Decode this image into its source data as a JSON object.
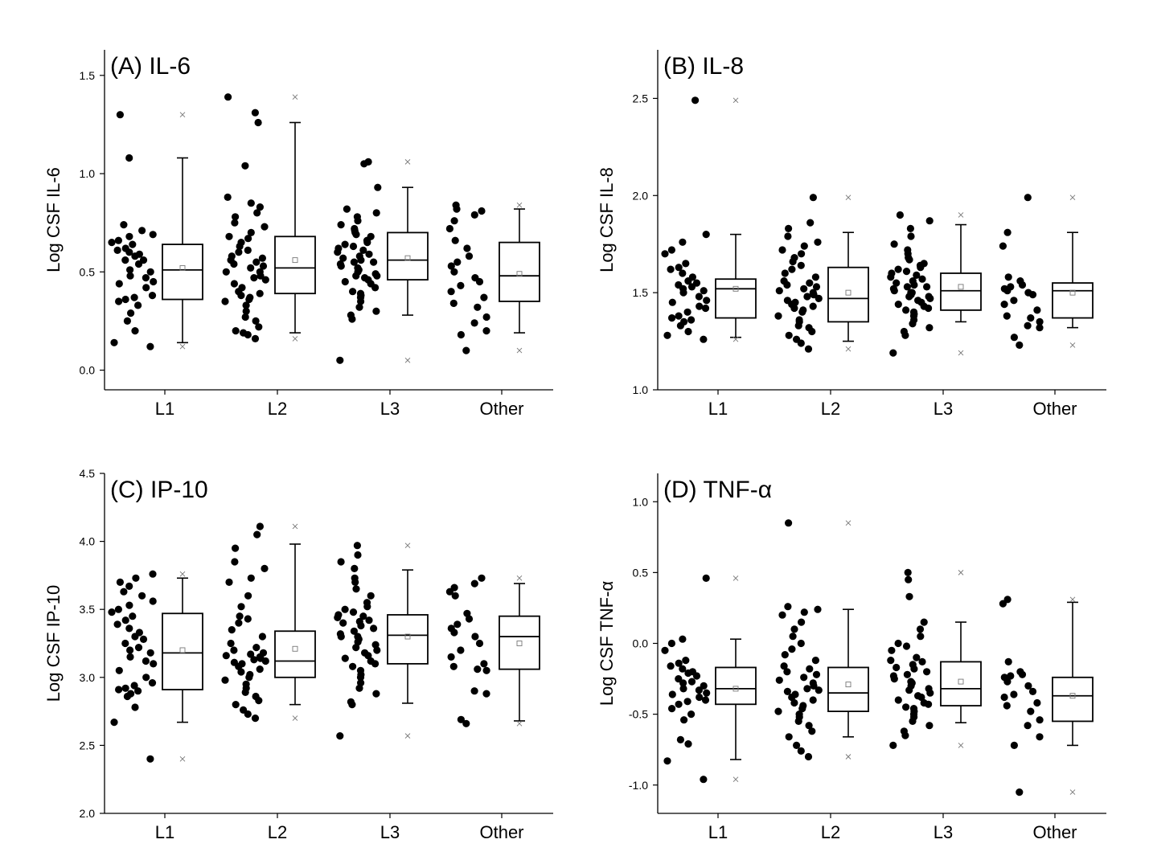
{
  "figure": {
    "colors": {
      "points": "#000000",
      "box_stroke": "#000000",
      "marker": "#777777"
    }
  },
  "chart_data": [
    {
      "type": "box",
      "title": "(A) IL-6",
      "ylabel": "Log CSF IL-6",
      "xlabel": "",
      "categories": [
        "L1",
        "L2",
        "L3",
        "Other"
      ],
      "ylim": [
        -0.1,
        1.63
      ],
      "yticks": [
        0.0,
        0.5,
        1.0,
        1.5
      ],
      "yticklabels": [
        "0.0",
        "0.5",
        "1.0",
        "1.5"
      ],
      "boxes": [
        {
          "category": "L1",
          "whisker_low": 0.14,
          "q1": 0.36,
          "median": 0.51,
          "q3": 0.64,
          "whisker_high": 1.08,
          "mean": 0.52,
          "min": 0.12,
          "max": 1.3
        },
        {
          "category": "L2",
          "whisker_low": 0.19,
          "q1": 0.39,
          "median": 0.52,
          "q3": 0.68,
          "whisker_high": 1.26,
          "mean": 0.56,
          "min": 0.16,
          "max": 1.39
        },
        {
          "category": "L3",
          "whisker_low": 0.28,
          "q1": 0.46,
          "median": 0.56,
          "q3": 0.7,
          "whisker_high": 0.93,
          "mean": 0.57,
          "min": 0.05,
          "max": 1.06
        },
        {
          "category": "Other",
          "whisker_low": 0.19,
          "q1": 0.35,
          "median": 0.48,
          "q3": 0.65,
          "whisker_high": 0.82,
          "mean": 0.49,
          "min": 0.1,
          "max": 0.84
        }
      ],
      "points": [
        [
          0.12,
          0.14,
          0.2,
          0.25,
          0.29,
          0.33,
          0.35,
          0.36,
          0.37,
          0.38,
          0.42,
          0.44,
          0.45,
          0.47,
          0.48,
          0.5,
          0.51,
          0.54,
          0.56,
          0.56,
          0.58,
          0.59,
          0.6,
          0.61,
          0.62,
          0.64,
          0.65,
          0.66,
          0.68,
          0.69,
          0.71,
          0.74,
          1.08,
          1.3
        ],
        [
          0.16,
          0.18,
          0.19,
          0.2,
          0.22,
          0.25,
          0.27,
          0.3,
          0.33,
          0.35,
          0.36,
          0.37,
          0.38,
          0.39,
          0.4,
          0.42,
          0.44,
          0.46,
          0.47,
          0.48,
          0.5,
          0.5,
          0.52,
          0.53,
          0.54,
          0.55,
          0.56,
          0.57,
          0.58,
          0.6,
          0.61,
          0.63,
          0.65,
          0.67,
          0.68,
          0.7,
          0.73,
          0.75,
          0.78,
          0.8,
          0.83,
          0.85,
          0.88,
          1.04,
          1.26,
          1.31,
          1.39
        ],
        [
          0.05,
          0.26,
          0.28,
          0.3,
          0.32,
          0.35,
          0.37,
          0.38,
          0.39,
          0.4,
          0.42,
          0.44,
          0.45,
          0.46,
          0.47,
          0.48,
          0.48,
          0.49,
          0.5,
          0.51,
          0.52,
          0.53,
          0.54,
          0.55,
          0.55,
          0.56,
          0.57,
          0.58,
          0.59,
          0.6,
          0.61,
          0.62,
          0.63,
          0.64,
          0.65,
          0.66,
          0.68,
          0.69,
          0.7,
          0.71,
          0.72,
          0.74,
          0.76,
          0.78,
          0.8,
          0.82,
          0.93,
          1.05,
          1.06
        ],
        [
          0.1,
          0.18,
          0.2,
          0.24,
          0.27,
          0.32,
          0.34,
          0.37,
          0.4,
          0.43,
          0.45,
          0.47,
          0.5,
          0.53,
          0.55,
          0.58,
          0.62,
          0.66,
          0.72,
          0.76,
          0.79,
          0.81,
          0.82,
          0.84
        ]
      ]
    },
    {
      "type": "box",
      "title": "(B) IL-8",
      "ylabel": "Log CSF IL-8",
      "xlabel": "",
      "categories": [
        "L1",
        "L2",
        "L3",
        "Other"
      ],
      "ylim": [
        1.0,
        2.75
      ],
      "yticks": [
        1.0,
        1.5,
        2.0,
        2.5
      ],
      "yticklabels": [
        "1.0",
        "1.5",
        "2.0",
        "2.5"
      ],
      "boxes": [
        {
          "category": "L1",
          "whisker_low": 1.27,
          "q1": 1.37,
          "median": 1.52,
          "q3": 1.57,
          "whisker_high": 1.8,
          "mean": 1.52,
          "min": 1.26,
          "max": 2.49
        },
        {
          "category": "L2",
          "whisker_low": 1.25,
          "q1": 1.35,
          "median": 1.47,
          "q3": 1.63,
          "whisker_high": 1.81,
          "mean": 1.5,
          "min": 1.21,
          "max": 1.99
        },
        {
          "category": "L3",
          "whisker_low": 1.35,
          "q1": 1.41,
          "median": 1.51,
          "q3": 1.6,
          "whisker_high": 1.85,
          "mean": 1.53,
          "min": 1.19,
          "max": 1.9
        },
        {
          "category": "Other",
          "whisker_low": 1.32,
          "q1": 1.37,
          "median": 1.51,
          "q3": 1.55,
          "whisker_high": 1.81,
          "mean": 1.5,
          "min": 1.23,
          "max": 1.99
        }
      ],
      "points": [
        [
          1.26,
          1.28,
          1.3,
          1.33,
          1.35,
          1.36,
          1.37,
          1.38,
          1.4,
          1.42,
          1.43,
          1.45,
          1.46,
          1.48,
          1.5,
          1.51,
          1.52,
          1.53,
          1.54,
          1.55,
          1.56,
          1.58,
          1.6,
          1.62,
          1.63,
          1.65,
          1.7,
          1.72,
          1.76,
          1.8,
          2.49
        ],
        [
          1.21,
          1.24,
          1.26,
          1.28,
          1.3,
          1.32,
          1.33,
          1.35,
          1.36,
          1.38,
          1.4,
          1.41,
          1.42,
          1.43,
          1.44,
          1.45,
          1.46,
          1.47,
          1.48,
          1.49,
          1.5,
          1.51,
          1.52,
          1.53,
          1.54,
          1.55,
          1.56,
          1.58,
          1.6,
          1.62,
          1.64,
          1.66,
          1.68,
          1.7,
          1.72,
          1.74,
          1.76,
          1.79,
          1.83,
          1.86,
          1.99
        ],
        [
          1.19,
          1.28,
          1.3,
          1.32,
          1.34,
          1.36,
          1.38,
          1.39,
          1.4,
          1.41,
          1.42,
          1.43,
          1.44,
          1.45,
          1.46,
          1.47,
          1.48,
          1.48,
          1.49,
          1.5,
          1.5,
          1.51,
          1.52,
          1.53,
          1.53,
          1.54,
          1.55,
          1.56,
          1.57,
          1.58,
          1.59,
          1.6,
          1.61,
          1.62,
          1.63,
          1.64,
          1.65,
          1.67,
          1.68,
          1.7,
          1.72,
          1.75,
          1.79,
          1.83,
          1.87,
          1.9
        ],
        [
          1.23,
          1.27,
          1.32,
          1.33,
          1.35,
          1.37,
          1.38,
          1.41,
          1.44,
          1.46,
          1.49,
          1.5,
          1.51,
          1.52,
          1.53,
          1.54,
          1.56,
          1.58,
          1.74,
          1.81,
          1.99
        ]
      ]
    },
    {
      "type": "box",
      "title": "(C) IP-10",
      "ylabel": "Log CSF IP-10",
      "xlabel": "",
      "categories": [
        "L1",
        "L2",
        "L3",
        "Other"
      ],
      "ylim": [
        2.0,
        4.5
      ],
      "yticks": [
        2.0,
        2.5,
        3.0,
        3.5,
        4.0,
        4.5
      ],
      "yticklabels": [
        "2.0",
        "2.5",
        "3.0",
        "3.5",
        "4.0",
        "4.5"
      ],
      "boxes": [
        {
          "category": "L1",
          "whisker_low": 2.67,
          "q1": 2.91,
          "median": 3.18,
          "q3": 3.47,
          "whisker_high": 3.73,
          "mean": 3.2,
          "min": 2.4,
          "max": 3.76
        },
        {
          "category": "L2",
          "whisker_low": 2.8,
          "q1": 3.0,
          "median": 3.12,
          "q3": 3.34,
          "whisker_high": 3.98,
          "mean": 3.21,
          "min": 2.7,
          "max": 4.11
        },
        {
          "category": "L3",
          "whisker_low": 2.81,
          "q1": 3.1,
          "median": 3.31,
          "q3": 3.46,
          "whisker_high": 3.79,
          "mean": 3.3,
          "min": 2.57,
          "max": 3.97
        },
        {
          "category": "Other",
          "whisker_low": 2.68,
          "q1": 3.06,
          "median": 3.3,
          "q3": 3.45,
          "whisker_high": 3.69,
          "mean": 3.25,
          "min": 2.66,
          "max": 3.73
        }
      ],
      "points": [
        [
          2.4,
          2.67,
          2.78,
          2.86,
          2.88,
          2.9,
          2.91,
          2.92,
          2.94,
          2.96,
          3.0,
          3.05,
          3.1,
          3.12,
          3.15,
          3.18,
          3.2,
          3.22,
          3.25,
          3.28,
          3.3,
          3.33,
          3.36,
          3.39,
          3.42,
          3.45,
          3.48,
          3.5,
          3.53,
          3.56,
          3.6,
          3.63,
          3.67,
          3.7,
          3.73,
          3.76
        ],
        [
          2.7,
          2.73,
          2.76,
          2.8,
          2.83,
          2.86,
          2.89,
          2.92,
          2.95,
          2.98,
          3.0,
          3.02,
          3.04,
          3.06,
          3.08,
          3.1,
          3.11,
          3.12,
          3.13,
          3.14,
          3.15,
          3.16,
          3.17,
          3.18,
          3.2,
          3.22,
          3.25,
          3.3,
          3.35,
          3.4,
          3.43,
          3.45,
          3.52,
          3.6,
          3.7,
          3.73,
          3.8,
          3.85,
          3.95,
          4.05,
          4.11
        ],
        [
          2.57,
          2.8,
          2.82,
          2.88,
          2.92,
          2.96,
          3.0,
          3.02,
          3.05,
          3.08,
          3.1,
          3.12,
          3.14,
          3.16,
          3.18,
          3.2,
          3.22,
          3.24,
          3.26,
          3.28,
          3.3,
          3.3,
          3.32,
          3.34,
          3.36,
          3.38,
          3.4,
          3.41,
          3.42,
          3.44,
          3.45,
          3.46,
          3.48,
          3.5,
          3.52,
          3.55,
          3.6,
          3.65,
          3.7,
          3.73,
          3.8,
          3.85,
          3.9,
          3.97
        ],
        [
          2.66,
          2.69,
          2.88,
          2.9,
          3.05,
          3.06,
          3.08,
          3.1,
          3.15,
          3.2,
          3.25,
          3.3,
          3.33,
          3.36,
          3.39,
          3.43,
          3.47,
          3.6,
          3.63,
          3.66,
          3.69,
          3.73
        ]
      ]
    },
    {
      "type": "box",
      "title": "(D) TNF-α",
      "ylabel": "Log CSF TNF-α",
      "xlabel": "",
      "categories": [
        "L1",
        "L2",
        "L3",
        "Other"
      ],
      "ylim": [
        -1.2,
        1.2
      ],
      "yticks": [
        -1.0,
        -0.5,
        0.0,
        0.5,
        1.0
      ],
      "yticklabels": [
        "-1.0",
        "-0.5",
        "0.0",
        "0.5",
        "1.0"
      ],
      "boxes": [
        {
          "category": "L1",
          "whisker_low": -0.82,
          "q1": -0.43,
          "median": -0.32,
          "q3": -0.17,
          "whisker_high": 0.03,
          "mean": -0.32,
          "min": -0.96,
          "max": 0.46
        },
        {
          "category": "L2",
          "whisker_low": -0.66,
          "q1": -0.48,
          "median": -0.35,
          "q3": -0.17,
          "whisker_high": 0.24,
          "mean": -0.29,
          "min": -0.8,
          "max": 0.85
        },
        {
          "category": "L3",
          "whisker_low": -0.56,
          "q1": -0.44,
          "median": -0.32,
          "q3": -0.13,
          "whisker_high": 0.15,
          "mean": -0.27,
          "min": -0.72,
          "max": 0.5
        },
        {
          "category": "Other",
          "whisker_low": -0.72,
          "q1": -0.55,
          "median": -0.37,
          "q3": -0.24,
          "whisker_high": 0.29,
          "mean": -0.37,
          "min": -1.05,
          "max": 0.31
        }
      ],
      "points": [
        [
          -0.96,
          -0.83,
          -0.71,
          -0.68,
          -0.54,
          -0.5,
          -0.46,
          -0.43,
          -0.41,
          -0.4,
          -0.38,
          -0.36,
          -0.35,
          -0.33,
          -0.32,
          -0.3,
          -0.28,
          -0.27,
          -0.25,
          -0.23,
          -0.21,
          -0.2,
          -0.18,
          -0.16,
          -0.14,
          -0.12,
          -0.05,
          0.0,
          0.03,
          0.46
        ],
        [
          -0.8,
          -0.76,
          -0.72,
          -0.66,
          -0.62,
          -0.58,
          -0.55,
          -0.52,
          -0.5,
          -0.48,
          -0.46,
          -0.44,
          -0.42,
          -0.4,
          -0.38,
          -0.36,
          -0.34,
          -0.33,
          -0.32,
          -0.3,
          -0.28,
          -0.26,
          -0.24,
          -0.22,
          -0.2,
          -0.18,
          -0.16,
          -0.12,
          -0.08,
          -0.04,
          0.0,
          0.05,
          0.1,
          0.15,
          0.2,
          0.22,
          0.24,
          0.26,
          0.85
        ],
        [
          -0.72,
          -0.65,
          -0.62,
          -0.58,
          -0.55,
          -0.52,
          -0.5,
          -0.48,
          -0.46,
          -0.45,
          -0.43,
          -0.42,
          -0.4,
          -0.38,
          -0.37,
          -0.35,
          -0.33,
          -0.32,
          -0.3,
          -0.28,
          -0.27,
          -0.25,
          -0.23,
          -0.22,
          -0.2,
          -0.18,
          -0.17,
          -0.15,
          -0.13,
          -0.12,
          -0.1,
          -0.05,
          -0.02,
          0.0,
          0.05,
          0.1,
          0.15,
          0.33,
          0.45,
          0.5
        ],
        [
          -1.05,
          -0.72,
          -0.66,
          -0.58,
          -0.54,
          -0.48,
          -0.44,
          -0.42,
          -0.38,
          -0.36,
          -0.34,
          -0.3,
          -0.27,
          -0.24,
          -0.23,
          -0.22,
          -0.2,
          -0.13,
          0.28,
          0.31
        ]
      ]
    }
  ]
}
